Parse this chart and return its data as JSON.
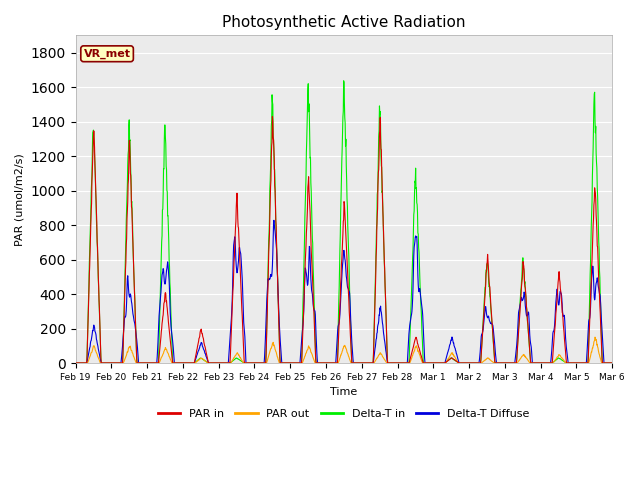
{
  "title": "Photosynthetic Active Radiation",
  "ylabel": "PAR (umol/m2/s)",
  "xlabel": "Time",
  "ylim": [
    0,
    1900
  ],
  "yticks": [
    0,
    200,
    400,
    600,
    800,
    1000,
    1200,
    1400,
    1600,
    1800
  ],
  "fig_bg": "#ffffff",
  "plot_bg": "#ebebeb",
  "colors": {
    "par_in": "#dd0000",
    "par_out": "#ffa500",
    "delta_t_in": "#00ee00",
    "delta_t_diffuse": "#0000dd"
  },
  "legend_labels": [
    "PAR in",
    "PAR out",
    "Delta-T in",
    "Delta-T Diffuse"
  ],
  "watermark": "VR_met",
  "xtick_labels": [
    "Feb 19",
    "Feb 20",
    "Feb 21",
    "Feb 22",
    "Feb 23",
    "Feb 24",
    "Feb 25",
    "Feb 26",
    "Feb 27",
    "Feb 28",
    "Mar 1",
    "Mar 2",
    "Mar 3",
    "Mar 4",
    "Mar 5",
    "Mar 6"
  ],
  "n_days": 16,
  "pts_per_day": 96
}
